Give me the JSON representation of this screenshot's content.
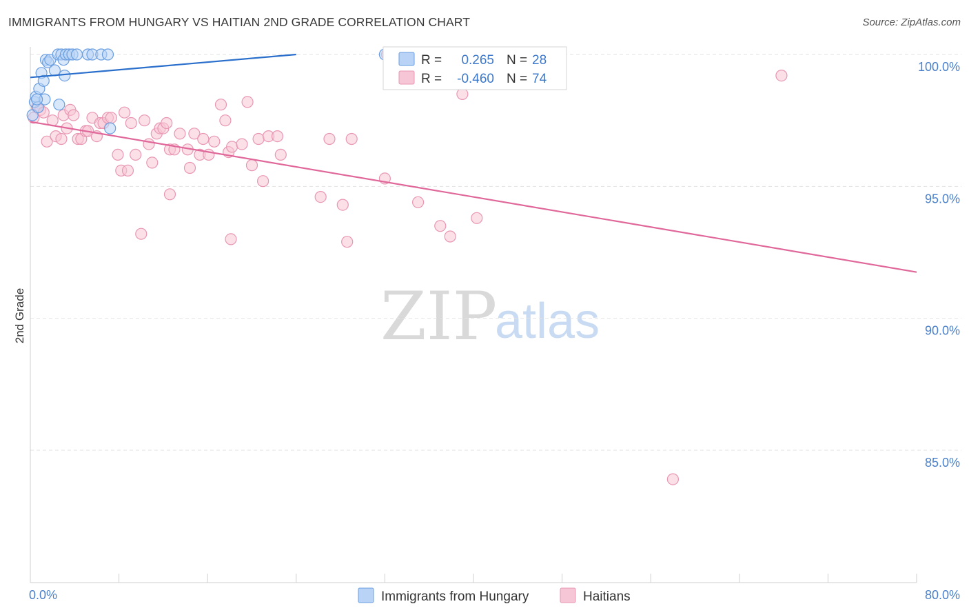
{
  "title": "IMMIGRANTS FROM HUNGARY VS HAITIAN 2ND GRADE CORRELATION CHART",
  "source": "Source: ZipAtlas.com",
  "watermark": {
    "zip": "ZIP",
    "atlas": "atlas"
  },
  "colors": {
    "blue_fill": "#b8d3f5",
    "blue_stroke": "#6a9ee0",
    "blue_line": "#2a6fcb",
    "pink_fill": "#f7c6d6",
    "pink_stroke": "#e896b2",
    "pink_line": "#e0679a",
    "grid": "#e2e2e2",
    "tick_text": "#4a7fc8"
  },
  "chart_data": {
    "type": "scatter",
    "title": "IMMIGRANTS FROM HUNGARY VS HAITIAN 2ND GRADE CORRELATION CHART",
    "xlabel": "",
    "ylabel": "2nd Grade",
    "xlim": [
      0,
      80
    ],
    "ylim": [
      80.0,
      100.8
    ],
    "x_tick_labels": [
      "0.0%",
      "80.0%"
    ],
    "y_ticks": [
      {
        "value": 100,
        "label": "100.0%"
      },
      {
        "value": 95,
        "label": "95.0%"
      },
      {
        "value": 90,
        "label": "90.0%"
      },
      {
        "value": 85,
        "label": "85.0%"
      }
    ],
    "legend": {
      "r_label": "R =",
      "n_label": "N =",
      "entries": [
        {
          "r": "0.265",
          "n": "28"
        },
        {
          "r": "-0.460",
          "n": "74"
        }
      ]
    },
    "series": [
      {
        "name": "Immigrants from Hungary",
        "color": "blue",
        "trend": {
          "x1": 0,
          "y1": 99.13,
          "x2": 24,
          "y2": 100.0
        },
        "points": [
          [
            0.2,
            97.7
          ],
          [
            0.4,
            98.2
          ],
          [
            0.5,
            98.4
          ],
          [
            0.7,
            98.0
          ],
          [
            0.8,
            98.7
          ],
          [
            1.0,
            99.3
          ],
          [
            1.2,
            99.0
          ],
          [
            1.4,
            99.8
          ],
          [
            1.6,
            99.7
          ],
          [
            1.8,
            99.8
          ],
          [
            2.2,
            99.4
          ],
          [
            2.5,
            100.0
          ],
          [
            2.8,
            100.0
          ],
          [
            3.0,
            99.8
          ],
          [
            3.2,
            100.0
          ],
          [
            3.5,
            100.0
          ],
          [
            3.8,
            100.0
          ],
          [
            4.2,
            100.0
          ],
          [
            5.2,
            100.0
          ],
          [
            5.6,
            100.0
          ],
          [
            6.4,
            100.0
          ],
          [
            7.0,
            100.0
          ],
          [
            3.1,
            99.2
          ],
          [
            2.6,
            98.1
          ],
          [
            1.3,
            98.3
          ],
          [
            7.2,
            97.2
          ],
          [
            32.0,
            100.0
          ],
          [
            0.6,
            98.3
          ]
        ]
      },
      {
        "name": "Haitians",
        "color": "pink",
        "trend": {
          "x1": 0,
          "y1": 97.45,
          "x2": 80,
          "y2": 91.75
        },
        "points": [
          [
            0.3,
            97.6
          ],
          [
            0.6,
            98.0
          ],
          [
            0.9,
            97.9
          ],
          [
            1.2,
            97.8
          ],
          [
            1.5,
            96.7
          ],
          [
            2.0,
            97.5
          ],
          [
            2.3,
            96.9
          ],
          [
            2.8,
            96.8
          ],
          [
            3.0,
            97.7
          ],
          [
            3.3,
            97.2
          ],
          [
            3.6,
            97.9
          ],
          [
            3.9,
            97.7
          ],
          [
            4.3,
            96.8
          ],
          [
            4.6,
            96.8
          ],
          [
            5.0,
            97.1
          ],
          [
            5.2,
            97.1
          ],
          [
            5.6,
            97.6
          ],
          [
            6.0,
            96.9
          ],
          [
            6.3,
            97.4
          ],
          [
            6.6,
            97.4
          ],
          [
            7.0,
            97.6
          ],
          [
            7.3,
            97.6
          ],
          [
            7.9,
            96.2
          ],
          [
            8.2,
            95.6
          ],
          [
            8.8,
            95.6
          ],
          [
            8.5,
            97.8
          ],
          [
            9.1,
            97.4
          ],
          [
            9.5,
            96.2
          ],
          [
            10.3,
            97.5
          ],
          [
            10.7,
            96.6
          ],
          [
            11.0,
            95.9
          ],
          [
            11.4,
            97.0
          ],
          [
            11.7,
            97.2
          ],
          [
            12.0,
            97.2
          ],
          [
            12.3,
            97.4
          ],
          [
            12.6,
            96.4
          ],
          [
            13.0,
            96.4
          ],
          [
            13.5,
            97.0
          ],
          [
            14.2,
            96.4
          ],
          [
            14.4,
            95.7
          ],
          [
            14.8,
            97.0
          ],
          [
            15.3,
            96.2
          ],
          [
            15.6,
            96.8
          ],
          [
            16.1,
            96.2
          ],
          [
            16.6,
            96.7
          ],
          [
            17.2,
            98.1
          ],
          [
            17.6,
            97.5
          ],
          [
            17.9,
            96.3
          ],
          [
            18.2,
            96.5
          ],
          [
            19.1,
            96.6
          ],
          [
            19.6,
            98.2
          ],
          [
            20.0,
            95.8
          ],
          [
            20.6,
            96.8
          ],
          [
            21.0,
            95.2
          ],
          [
            21.5,
            96.9
          ],
          [
            22.3,
            96.9
          ],
          [
            22.6,
            96.2
          ],
          [
            10.0,
            93.2
          ],
          [
            12.6,
            94.7
          ],
          [
            18.1,
            93.0
          ],
          [
            26.2,
            94.6
          ],
          [
            27.0,
            96.8
          ],
          [
            28.2,
            94.3
          ],
          [
            28.6,
            92.9
          ],
          [
            29.0,
            96.8
          ],
          [
            32.0,
            95.3
          ],
          [
            35.0,
            94.4
          ],
          [
            37.0,
            93.5
          ],
          [
            37.9,
            93.1
          ],
          [
            39.0,
            98.5
          ],
          [
            40.3,
            93.8
          ],
          [
            67.8,
            99.2
          ],
          [
            58.0,
            83.9
          ],
          [
            32.2,
            100.0
          ]
        ]
      }
    ]
  }
}
